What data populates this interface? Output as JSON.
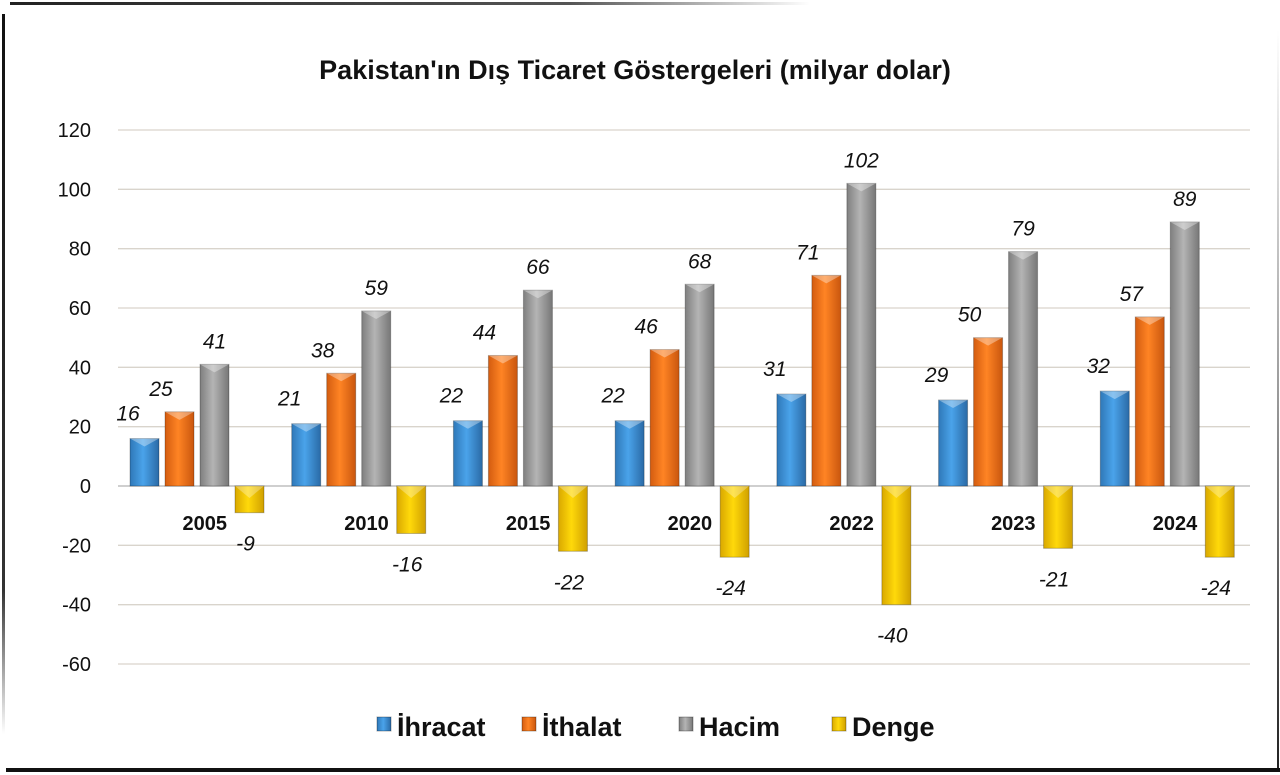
{
  "chart_data": {
    "type": "bar",
    "title": "Pakistan'ın Dış Ticaret Göstergeleri (milyar dolar)",
    "xlabel": "",
    "ylabel": "",
    "ylim": [
      -60,
      120
    ],
    "yticks": [
      120,
      100,
      80,
      60,
      40,
      20,
      0,
      -20,
      -40,
      -60
    ],
    "grid": true,
    "legend_position": "bottom",
    "categories": [
      "2005",
      "2010",
      "2015",
      "2020",
      "2022",
      "2023",
      "2024"
    ],
    "series": [
      {
        "name": "İhracat",
        "color": "#3d8fd6",
        "values": [
          16,
          21,
          22,
          22,
          31,
          29,
          32
        ]
      },
      {
        "name": "İthalat",
        "color": "#f07520",
        "values": [
          25,
          38,
          44,
          46,
          71,
          50,
          57
        ]
      },
      {
        "name": "Hacim",
        "color": "#9a9a9a",
        "values": [
          41,
          59,
          66,
          68,
          102,
          79,
          89
        ]
      },
      {
        "name": "Denge",
        "color": "#f5c400",
        "values": [
          -9,
          -16,
          -22,
          -24,
          -40,
          -21,
          -24
        ]
      }
    ]
  }
}
